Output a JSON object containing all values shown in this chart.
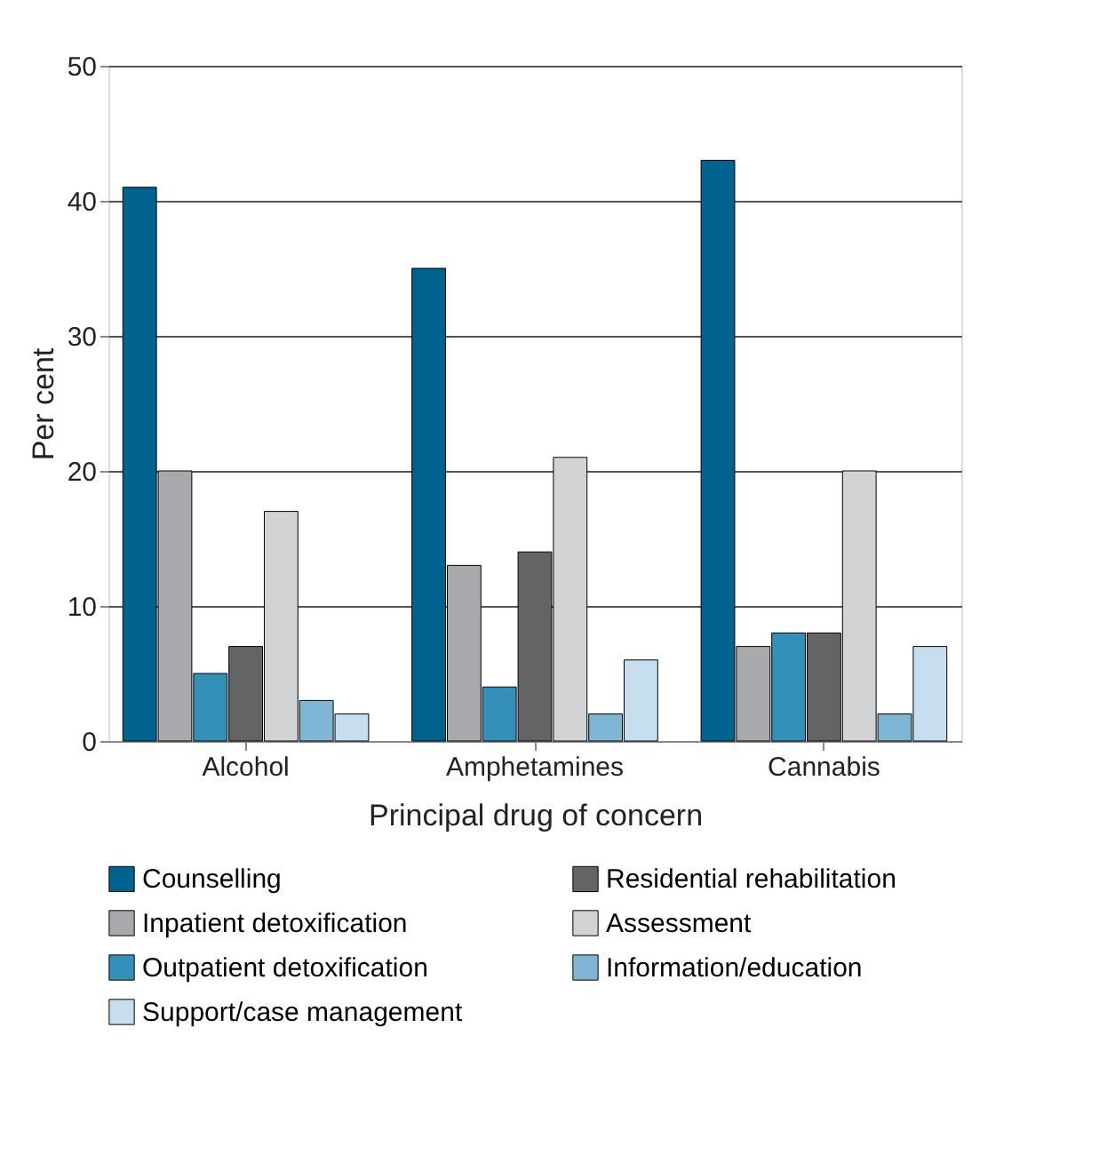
{
  "chart_data": {
    "type": "bar",
    "xlabel": "Principal drug of concern",
    "ylabel": "Per cent",
    "categories": [
      "Alcohol",
      "Amphetamines",
      "Cannabis"
    ],
    "series": [
      {
        "name": "Counselling",
        "color": "#00628f",
        "values": [
          41,
          35,
          43
        ]
      },
      {
        "name": "Inpatient detoxification",
        "color": "#a7a9ac",
        "values": [
          20,
          13,
          7
        ]
      },
      {
        "name": "Outpatient detoxification",
        "color": "#3391b9",
        "values": [
          5,
          4,
          8
        ]
      },
      {
        "name": "Residential rehabilitation",
        "color": "#636466",
        "values": [
          7,
          14,
          8
        ]
      },
      {
        "name": "Assessment",
        "color": "#d1d3d4",
        "values": [
          17,
          21,
          20
        ]
      },
      {
        "name": "Information/education",
        "color": "#7fb6d6",
        "values": [
          3,
          2,
          2
        ]
      },
      {
        "name": "Support/case management",
        "color": "#c6deee",
        "values": [
          2,
          6,
          7
        ]
      }
    ],
    "ylim": [
      0,
      50
    ],
    "yticks": [
      0,
      10,
      20,
      30,
      40,
      50
    ],
    "grid": "y",
    "legend": "bottom"
  }
}
